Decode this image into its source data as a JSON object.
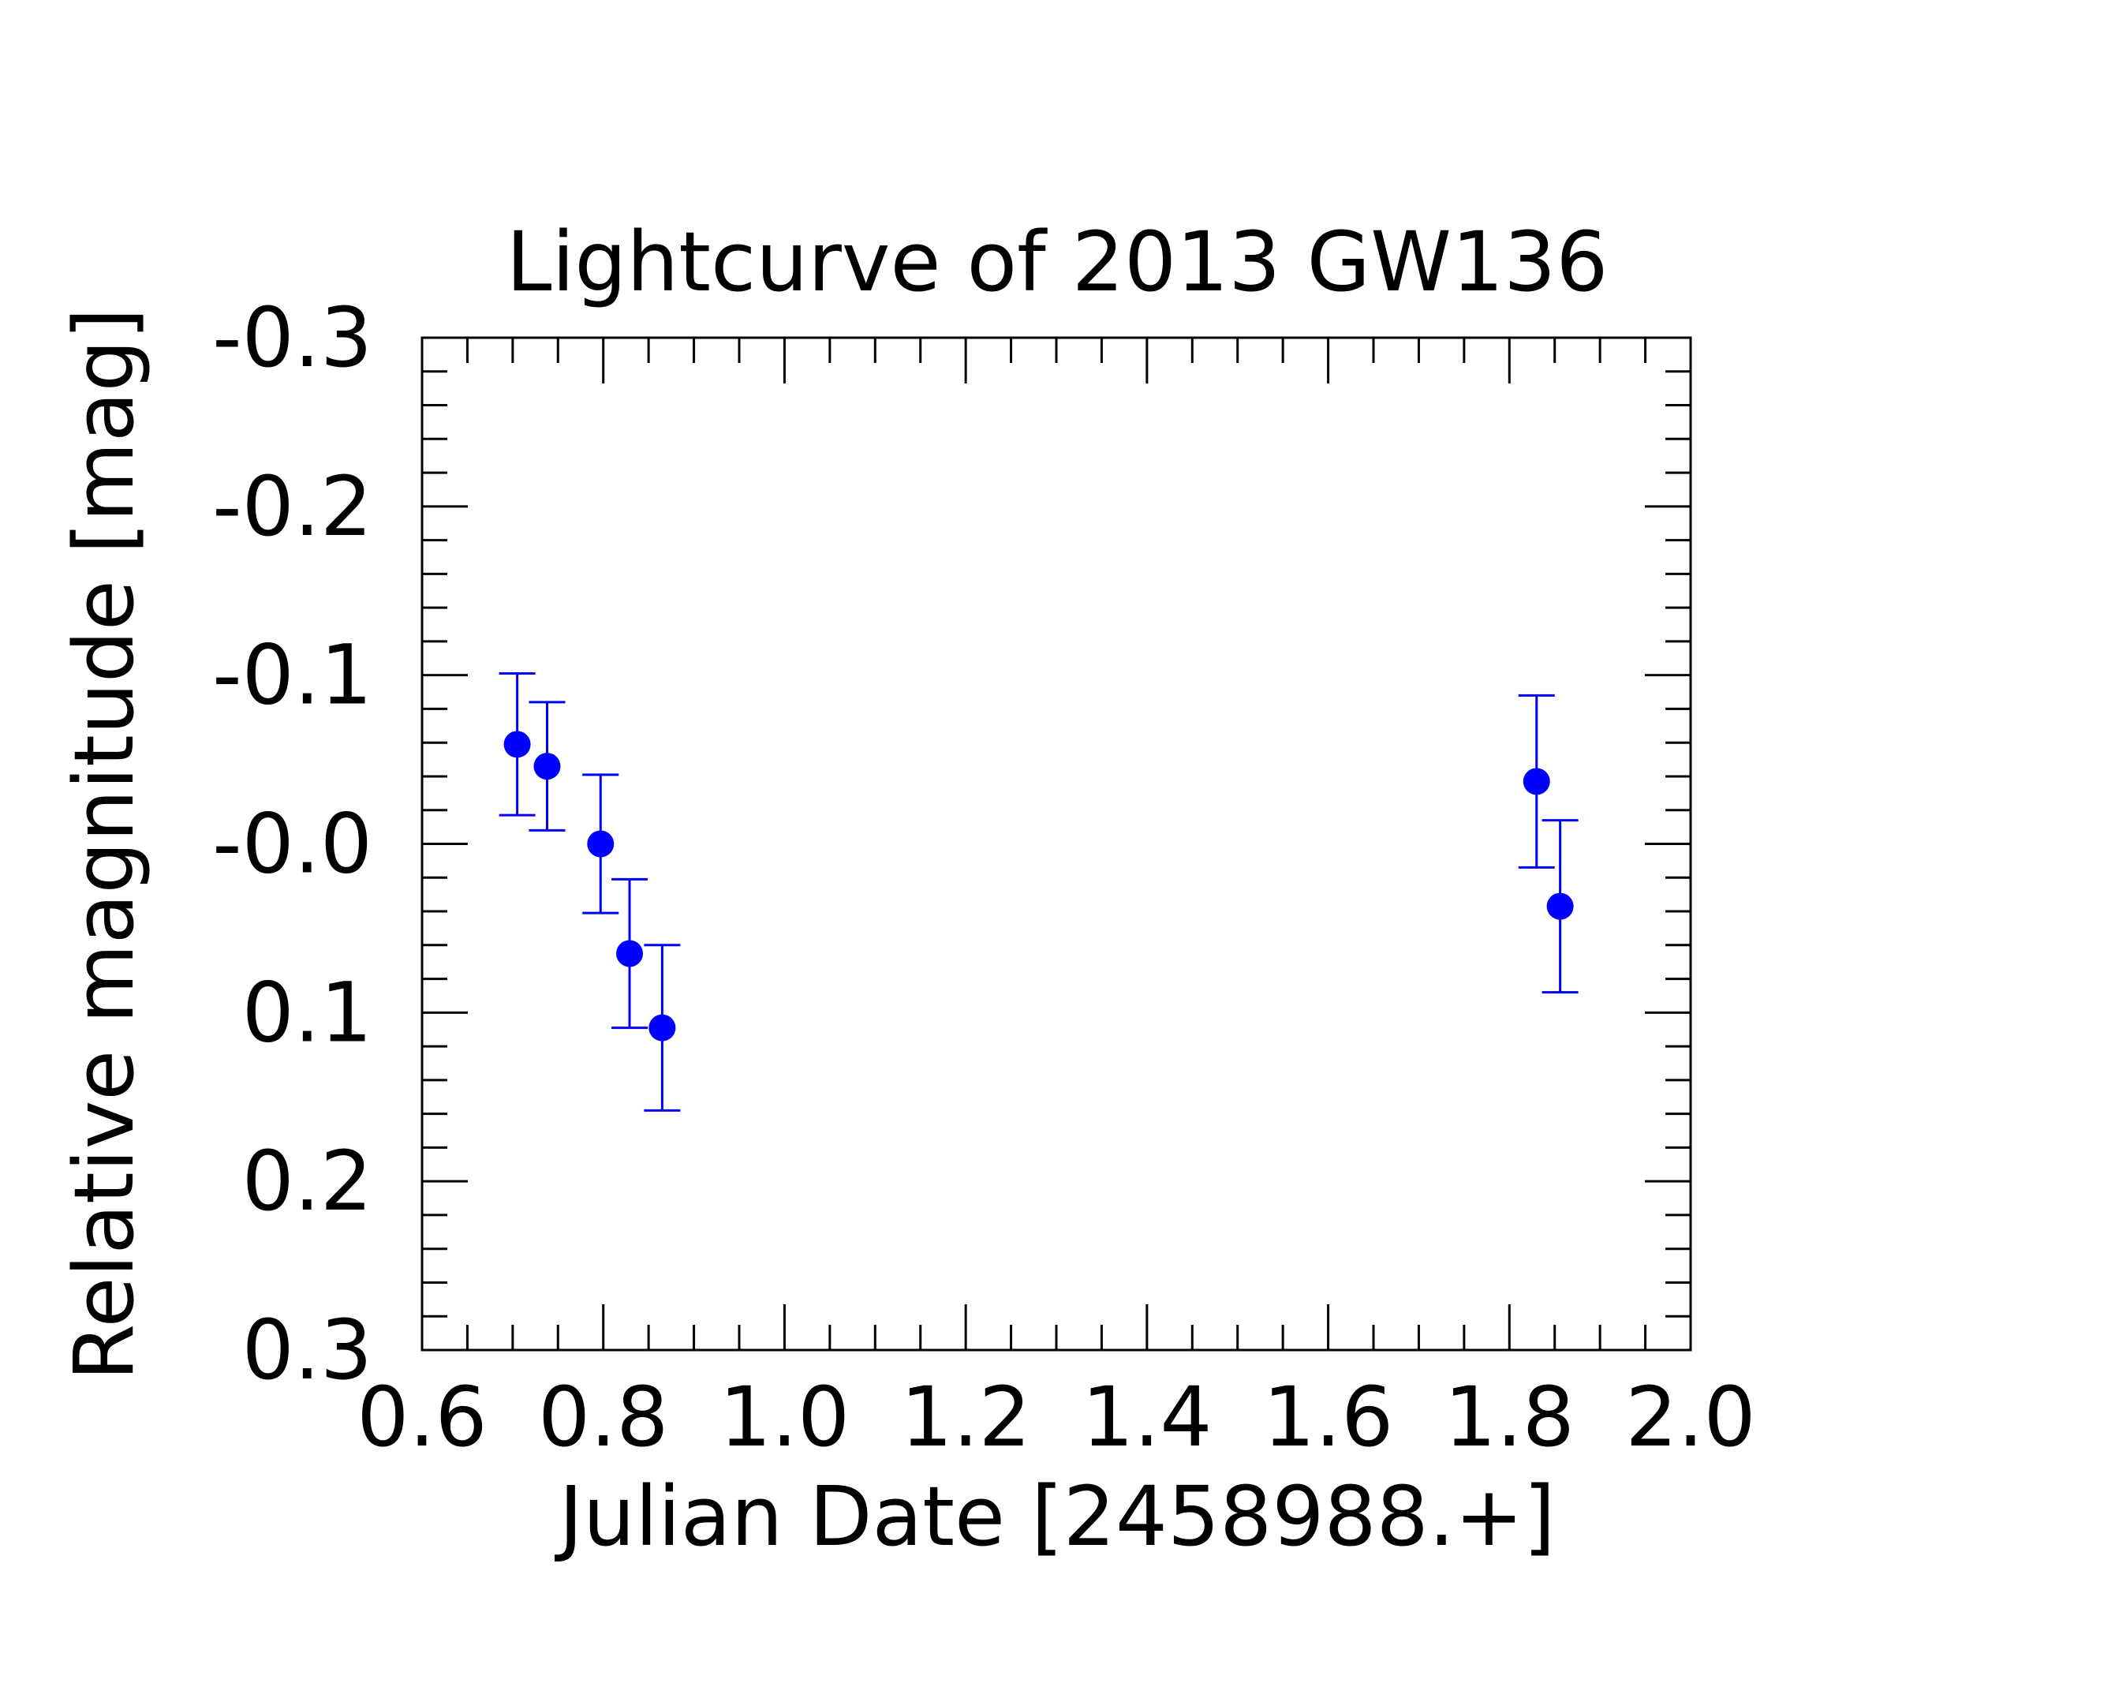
{
  "chart_data": {
    "type": "scatter",
    "title": "Lightcurve of 2013 GW136",
    "xlabel": "Julian Date [2458988.+]",
    "ylabel": "Relative magnitude [mag]",
    "xlim": [
      0.6,
      2.0
    ],
    "ylim": [
      -0.3,
      0.3
    ],
    "y_inverted": true,
    "x_ticks": [
      "0.6",
      "0.8",
      "1.0",
      "1.2",
      "1.4",
      "1.6",
      "1.8",
      "2.0"
    ],
    "y_ticks": [
      "-0.3",
      "-0.2",
      "-0.1",
      "-0.0",
      "0.1",
      "0.2",
      "0.3"
    ],
    "grid": false,
    "series": [
      {
        "color": "#0000ff",
        "points": [
          {
            "x": 0.705,
            "y": -0.059,
            "err": 0.042
          },
          {
            "x": 0.738,
            "y": -0.046,
            "err": 0.038
          },
          {
            "x": 0.797,
            "y": 0.0,
            "err": 0.041
          },
          {
            "x": 0.829,
            "y": 0.065,
            "err": 0.044
          },
          {
            "x": 0.865,
            "y": 0.109,
            "err": 0.049
          },
          {
            "x": 1.83,
            "y": -0.037,
            "err": 0.051
          },
          {
            "x": 1.856,
            "y": 0.037,
            "err": 0.051
          }
        ]
      }
    ]
  }
}
